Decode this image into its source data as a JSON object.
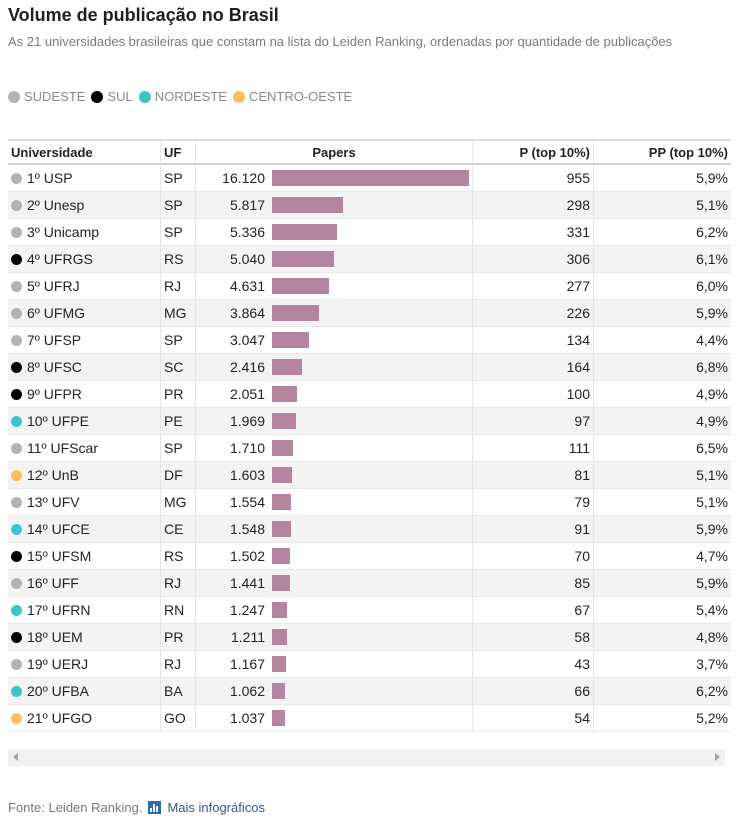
{
  "header": {
    "title": "Volume de publicação no Brasil",
    "subtitle": "As 21 universidades brasileiras que constam na lista do Leiden Ranking, ordenadas por quantidade de publicações"
  },
  "legend": [
    {
      "label": "SUDESTE",
      "color": "#b3b3b3"
    },
    {
      "label": "SUL",
      "color": "#000000"
    },
    {
      "label": "NORDESTE",
      "color": "#3cc5c6"
    },
    {
      "label": "CENTRO-OESTE",
      "color": "#f9bf5e"
    }
  ],
  "columns": {
    "universidade": "Universidade",
    "uf": "UF",
    "papers": "Papers",
    "p_top10": "P (top 10%)",
    "pp_top10": "PP (top 10%)"
  },
  "chart_data": {
    "type": "table",
    "papers_max": 16120,
    "rows": [
      {
        "rank": "1º",
        "name": "USP",
        "uf": "SP",
        "region": "SUDESTE",
        "papers": 16120,
        "papers_label": "16.120",
        "p_top10": "955",
        "pp_top10": "5,9%"
      },
      {
        "rank": "2º",
        "name": "Unesp",
        "uf": "SP",
        "region": "SUDESTE",
        "papers": 5817,
        "papers_label": "5.817",
        "p_top10": "298",
        "pp_top10": "5,1%"
      },
      {
        "rank": "3º",
        "name": "Unicamp",
        "uf": "SP",
        "region": "SUDESTE",
        "papers": 5336,
        "papers_label": "5.336",
        "p_top10": "331",
        "pp_top10": "6,2%"
      },
      {
        "rank": "4º",
        "name": "UFRGS",
        "uf": "RS",
        "region": "SUL",
        "papers": 5040,
        "papers_label": "5.040",
        "p_top10": "306",
        "pp_top10": "6,1%"
      },
      {
        "rank": "5º",
        "name": "UFRJ",
        "uf": "RJ",
        "region": "SUDESTE",
        "papers": 4631,
        "papers_label": "4.631",
        "p_top10": "277",
        "pp_top10": "6,0%"
      },
      {
        "rank": "6º",
        "name": "UFMG",
        "uf": "MG",
        "region": "SUDESTE",
        "papers": 3864,
        "papers_label": "3.864",
        "p_top10": "226",
        "pp_top10": "5,9%"
      },
      {
        "rank": "7º",
        "name": "UFSP",
        "uf": "SP",
        "region": "SUDESTE",
        "papers": 3047,
        "papers_label": "3.047",
        "p_top10": "134",
        "pp_top10": "4,4%"
      },
      {
        "rank": "8º",
        "name": "UFSC",
        "uf": "SC",
        "region": "SUL",
        "papers": 2416,
        "papers_label": "2.416",
        "p_top10": "164",
        "pp_top10": "6,8%"
      },
      {
        "rank": "9º",
        "name": "UFPR",
        "uf": "PR",
        "region": "SUL",
        "papers": 2051,
        "papers_label": "2.051",
        "p_top10": "100",
        "pp_top10": "4,9%"
      },
      {
        "rank": "10º",
        "name": "UFPE",
        "uf": "PE",
        "region": "NORDESTE",
        "papers": 1969,
        "papers_label": "1.969",
        "p_top10": "97",
        "pp_top10": "4,9%"
      },
      {
        "rank": "11º",
        "name": "UFScar",
        "uf": "SP",
        "region": "SUDESTE",
        "papers": 1710,
        "papers_label": "1.710",
        "p_top10": "111",
        "pp_top10": "6,5%"
      },
      {
        "rank": "12º",
        "name": "UnB",
        "uf": "DF",
        "region": "CENTRO-OESTE",
        "papers": 1603,
        "papers_label": "1.603",
        "p_top10": "81",
        "pp_top10": "5,1%"
      },
      {
        "rank": "13º",
        "name": "UFV",
        "uf": "MG",
        "region": "SUDESTE",
        "papers": 1554,
        "papers_label": "1.554",
        "p_top10": "79",
        "pp_top10": "5,1%"
      },
      {
        "rank": "14º",
        "name": "UFCE",
        "uf": "CE",
        "region": "NORDESTE",
        "papers": 1548,
        "papers_label": "1.548",
        "p_top10": "91",
        "pp_top10": "5,9%"
      },
      {
        "rank": "15º",
        "name": "UFSM",
        "uf": "RS",
        "region": "SUL",
        "papers": 1502,
        "papers_label": "1.502",
        "p_top10": "70",
        "pp_top10": "4,7%"
      },
      {
        "rank": "16º",
        "name": "UFF",
        "uf": "RJ",
        "region": "SUDESTE",
        "papers": 1441,
        "papers_label": "1.441",
        "p_top10": "85",
        "pp_top10": "5,9%"
      },
      {
        "rank": "17º",
        "name": "UFRN",
        "uf": "RN",
        "region": "NORDESTE",
        "papers": 1247,
        "papers_label": "1.247",
        "p_top10": "67",
        "pp_top10": "5,4%"
      },
      {
        "rank": "18º",
        "name": "UEM",
        "uf": "PR",
        "region": "SUL",
        "papers": 1211,
        "papers_label": "1.211",
        "p_top10": "58",
        "pp_top10": "4,8%"
      },
      {
        "rank": "19º",
        "name": "UERJ",
        "uf": "RJ",
        "region": "SUDESTE",
        "papers": 1167,
        "papers_label": "1.167",
        "p_top10": "43",
        "pp_top10": "3,7%"
      },
      {
        "rank": "20º",
        "name": "UFBA",
        "uf": "BA",
        "region": "NORDESTE",
        "papers": 1062,
        "papers_label": "1.062",
        "p_top10": "66",
        "pp_top10": "6,2%"
      },
      {
        "rank": "21º",
        "name": "UFGO",
        "uf": "GO",
        "region": "CENTRO-OESTE",
        "papers": 1037,
        "papers_label": "1.037",
        "p_top10": "54",
        "pp_top10": "5,2%"
      }
    ]
  },
  "colors": {
    "bar": "#b5859f",
    "SUDESTE": "#b3b3b3",
    "SUL": "#000000",
    "NORDESTE": "#3cc5c6",
    "CENTRO-OESTE": "#f9bf5e"
  },
  "footer": {
    "source": "Fonte: Leiden Ranking.",
    "link_label": "Mais infográficos",
    "link_icon": "bar-chart-icon"
  }
}
